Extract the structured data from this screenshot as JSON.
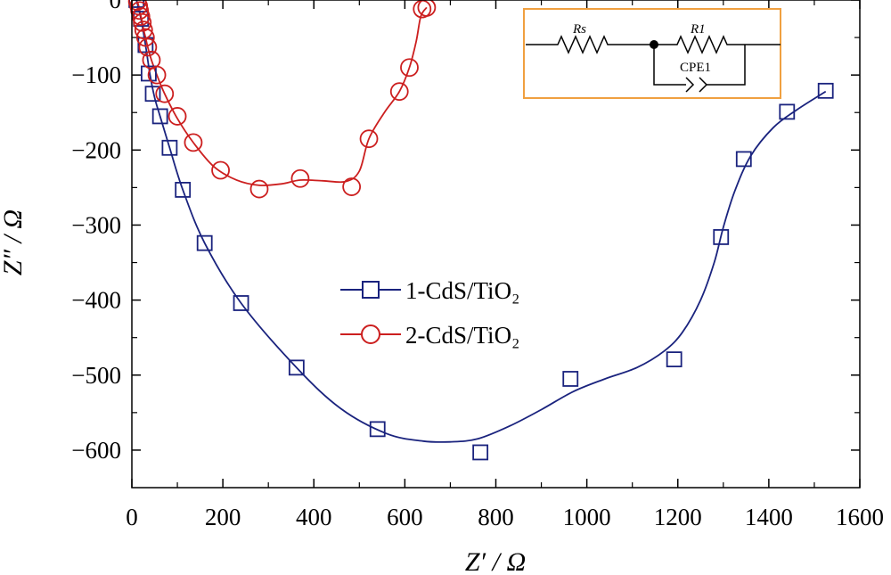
{
  "chart_data": {
    "type": "scatter",
    "xlabel": "Z′ / Ω",
    "ylabel": "Z″ / Ω",
    "xlim": [
      0,
      1600
    ],
    "ylim": [
      -650,
      0
    ],
    "x_ticks": [
      0,
      200,
      400,
      600,
      800,
      1000,
      1200,
      1400,
      1600
    ],
    "y_ticks": [
      0,
      -100,
      -200,
      -300,
      -400,
      -500,
      -600
    ],
    "legend_position": "center",
    "series": [
      {
        "name": "1-CdS/TiO₂",
        "color": "#1a237e",
        "marker": "square",
        "points": [
          [
            10,
            0
          ],
          [
            20,
            -25
          ],
          [
            30,
            -60
          ],
          [
            37,
            -98
          ],
          [
            46,
            -125
          ],
          [
            62,
            -155
          ],
          [
            83,
            -197
          ],
          [
            112,
            -253
          ],
          [
            160,
            -324
          ],
          [
            240,
            -404
          ],
          [
            362,
            -490
          ],
          [
            540,
            -572
          ],
          [
            766,
            -603
          ],
          [
            964,
            -505
          ],
          [
            1192,
            -479
          ],
          [
            1295,
            -316
          ],
          [
            1345,
            -212
          ],
          [
            1440,
            -149
          ],
          [
            1525,
            -121
          ]
        ],
        "fit": [
          [
            10,
            0
          ],
          [
            20,
            -25
          ],
          [
            30,
            -60
          ],
          [
            40,
            -100
          ],
          [
            50,
            -130
          ],
          [
            62,
            -155
          ],
          [
            83,
            -197
          ],
          [
            112,
            -253
          ],
          [
            160,
            -324
          ],
          [
            240,
            -404
          ],
          [
            362,
            -490
          ],
          [
            460,
            -545
          ],
          [
            560,
            -578
          ],
          [
            640,
            -588
          ],
          [
            700,
            -589
          ],
          [
            760,
            -585
          ],
          [
            830,
            -568
          ],
          [
            900,
            -546
          ],
          [
            970,
            -522
          ],
          [
            1040,
            -505
          ],
          [
            1110,
            -490
          ],
          [
            1170,
            -468
          ],
          [
            1210,
            -443
          ],
          [
            1250,
            -400
          ],
          [
            1280,
            -350
          ],
          [
            1300,
            -303
          ],
          [
            1325,
            -255
          ],
          [
            1360,
            -208
          ],
          [
            1410,
            -170
          ],
          [
            1460,
            -147
          ],
          [
            1525,
            -122
          ]
        ]
      },
      {
        "name": "2-CdS/TiO₂",
        "color": "#cc1f1f",
        "marker": "circle",
        "points": [
          [
            12,
            -2
          ],
          [
            15,
            -8
          ],
          [
            17,
            -14
          ],
          [
            20,
            -22
          ],
          [
            23,
            -30
          ],
          [
            26,
            -40
          ],
          [
            30,
            -50
          ],
          [
            35,
            -63
          ],
          [
            43,
            -80
          ],
          [
            55,
            -100
          ],
          [
            72,
            -125
          ],
          [
            100,
            -155
          ],
          [
            135,
            -190
          ],
          [
            195,
            -227
          ],
          [
            280,
            -252
          ],
          [
            370,
            -238
          ],
          [
            483,
            -249
          ],
          [
            521,
            -185
          ],
          [
            588,
            -122
          ],
          [
            610,
            -90
          ],
          [
            638,
            -12
          ],
          [
            648,
            -10
          ]
        ],
        "fit": [
          [
            12,
            -2
          ],
          [
            15,
            -8
          ],
          [
            17,
            -14
          ],
          [
            20,
            -22
          ],
          [
            23,
            -30
          ],
          [
            26,
            -40
          ],
          [
            30,
            -50
          ],
          [
            35,
            -63
          ],
          [
            43,
            -80
          ],
          [
            55,
            -100
          ],
          [
            72,
            -125
          ],
          [
            100,
            -158
          ],
          [
            135,
            -190
          ],
          [
            180,
            -222
          ],
          [
            230,
            -240
          ],
          [
            280,
            -247
          ],
          [
            330,
            -245
          ],
          [
            370,
            -240
          ],
          [
            420,
            -241
          ],
          [
            470,
            -242
          ],
          [
            500,
            -228
          ],
          [
            521,
            -185
          ],
          [
            555,
            -150
          ],
          [
            588,
            -122
          ],
          [
            610,
            -90
          ],
          [
            625,
            -55
          ],
          [
            635,
            -22
          ],
          [
            648,
            -10
          ]
        ]
      }
    ],
    "inset": {
      "label_rs": "Rs",
      "label_r1": "R1",
      "label_cpe": "CPE1",
      "border_color": "#f0a040"
    }
  }
}
